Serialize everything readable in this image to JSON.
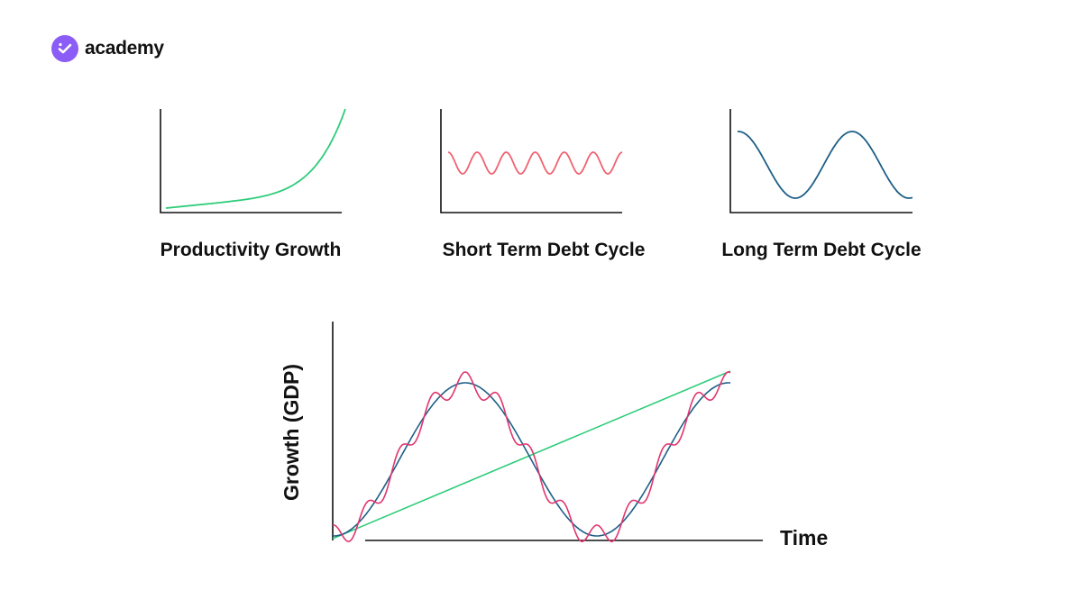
{
  "brand": {
    "name": "academy",
    "icon": "checkmark-icon",
    "color": "#8b5cf6"
  },
  "small_charts": [
    {
      "label": "Productivity Growth",
      "shape": "exponential",
      "color": "#2ecc7a"
    },
    {
      "label": "Short Term Debt Cycle",
      "shape": "fast-sine",
      "color": "#f06271"
    },
    {
      "label": "Long Term Debt Cycle",
      "shape": "slow-sine",
      "color": "#1d5f87"
    }
  ],
  "main_chart": {
    "ylabel": "Growth (GDP)",
    "xlabel": "Time",
    "series": [
      {
        "shape": "linear-trend",
        "color": "#2ecc7a"
      },
      {
        "shape": "long-cycle",
        "color": "#1d5f87"
      },
      {
        "shape": "long-cycle-plus-short-cycle",
        "color": "#e0356e"
      }
    ]
  }
}
